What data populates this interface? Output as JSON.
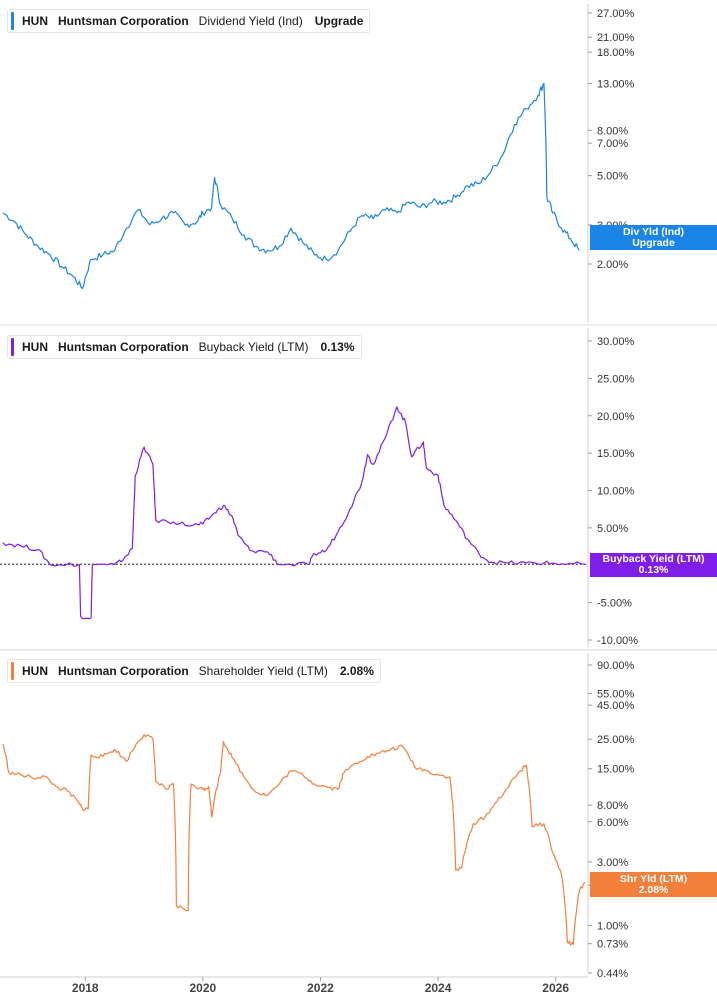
{
  "chart_data": [
    {
      "type": "line",
      "legend": {
        "ticker": "HUN",
        "company": "Huntsman Corporation",
        "metric": "Dividend Yield (Ind)",
        "value": "Upgrade"
      },
      "flag": {
        "line1": "Div Yld (Ind)",
        "line2": "Upgrade"
      },
      "color": "#1a85e6",
      "scale": "log",
      "ylim": [
        1.5,
        30
      ],
      "y_ticks": [
        "27.00%",
        "21.00%",
        "18.00%",
        "13.00%",
        "8.00%",
        "7.00%",
        "5.00%",
        "3.00%",
        "2.00%"
      ],
      "y_tick_values": [
        27,
        21,
        18,
        13,
        8,
        7,
        5,
        3,
        2
      ],
      "series": [
        {
          "points": [
            [
              2016.6,
              3.4
            ],
            [
              2016.8,
              3.1
            ],
            [
              2017.0,
              2.7
            ],
            [
              2017.2,
              2.4
            ],
            [
              2017.4,
              2.2
            ],
            [
              2017.6,
              1.95
            ],
            [
              2017.8,
              1.75
            ],
            [
              2017.95,
              1.55
            ],
            [
              2018.1,
              2.1
            ],
            [
              2018.3,
              2.2
            ],
            [
              2018.5,
              2.3
            ],
            [
              2018.7,
              2.9
            ],
            [
              2018.9,
              3.5
            ],
            [
              2019.1,
              3.0
            ],
            [
              2019.3,
              3.2
            ],
            [
              2019.5,
              3.4
            ],
            [
              2019.7,
              3.0
            ],
            [
              2019.9,
              3.1
            ],
            [
              2020.0,
              3.4
            ],
            [
              2020.15,
              3.6
            ],
            [
              2020.2,
              4.9
            ],
            [
              2020.3,
              3.7
            ],
            [
              2020.5,
              3.2
            ],
            [
              2020.7,
              2.7
            ],
            [
              2020.9,
              2.4
            ],
            [
              2021.1,
              2.3
            ],
            [
              2021.3,
              2.4
            ],
            [
              2021.5,
              2.9
            ],
            [
              2021.7,
              2.5
            ],
            [
              2021.9,
              2.2
            ],
            [
              2022.1,
              2.1
            ],
            [
              2022.3,
              2.3
            ],
            [
              2022.5,
              2.8
            ],
            [
              2022.7,
              3.3
            ],
            [
              2022.9,
              3.2
            ],
            [
              2023.1,
              3.5
            ],
            [
              2023.3,
              3.4
            ],
            [
              2023.5,
              3.8
            ],
            [
              2023.7,
              3.6
            ],
            [
              2023.9,
              3.8
            ],
            [
              2024.1,
              3.8
            ],
            [
              2024.3,
              4.0
            ],
            [
              2024.5,
              4.5
            ],
            [
              2024.7,
              4.6
            ],
            [
              2024.9,
              5.2
            ],
            [
              2025.1,
              6.2
            ],
            [
              2025.3,
              8.5
            ],
            [
              2025.5,
              10.0
            ],
            [
              2025.7,
              11.5
            ],
            [
              2025.8,
              13.0
            ],
            [
              2025.85,
              4.0
            ],
            [
              2025.95,
              3.4
            ],
            [
              2026.1,
              2.9
            ],
            [
              2026.25,
              2.6
            ],
            [
              2026.4,
              2.3
            ]
          ]
        }
      ]
    },
    {
      "type": "line",
      "legend": {
        "ticker": "HUN",
        "company": "Huntsman Corporation",
        "metric": "Buyback Yield (LTM)",
        "value": "0.13%"
      },
      "flag": {
        "line1": "Buyback Yield (LTM)",
        "line2": "0.13%"
      },
      "color": "#7f1ee8",
      "scale": "linear",
      "ylim": [
        -10,
        30
      ],
      "y_ticks": [
        "30.00%",
        "25.00%",
        "20.00%",
        "15.00%",
        "10.00%",
        "5.00%",
        "-5.00%",
        "-10.00%"
      ],
      "y_tick_values": [
        30,
        25,
        20,
        15,
        10,
        5,
        -5,
        -10
      ],
      "series": [
        {
          "points": [
            [
              2016.6,
              3.0
            ],
            [
              2016.9,
              2.6
            ],
            [
              2017.2,
              2.1
            ],
            [
              2017.4,
              0.1
            ],
            [
              2017.9,
              0.1
            ],
            [
              2017.92,
              -6.8
            ],
            [
              2018.1,
              -7.0
            ],
            [
              2018.12,
              0.1
            ],
            [
              2018.5,
              0.1
            ],
            [
              2018.6,
              0.5
            ],
            [
              2018.8,
              2.2
            ],
            [
              2018.85,
              12.0
            ],
            [
              2019.0,
              15.8
            ],
            [
              2019.15,
              13.5
            ],
            [
              2019.2,
              6.0
            ],
            [
              2019.5,
              5.8
            ],
            [
              2019.8,
              5.3
            ],
            [
              2020.0,
              5.5
            ],
            [
              2020.2,
              7.0
            ],
            [
              2020.35,
              8.0
            ],
            [
              2020.5,
              6.5
            ],
            [
              2020.6,
              4.0
            ],
            [
              2020.8,
              2.0
            ],
            [
              2021.1,
              1.8
            ],
            [
              2021.3,
              0.1
            ],
            [
              2021.8,
              0.1
            ],
            [
              2021.9,
              1.5
            ],
            [
              2022.1,
              2.0
            ],
            [
              2022.3,
              4.5
            ],
            [
              2022.5,
              7.5
            ],
            [
              2022.7,
              11.0
            ],
            [
              2022.8,
              14.8
            ],
            [
              2022.9,
              13.5
            ],
            [
              2023.1,
              17.0
            ],
            [
              2023.3,
              21.2
            ],
            [
              2023.45,
              19.0
            ],
            [
              2023.55,
              14.5
            ],
            [
              2023.75,
              16.5
            ],
            [
              2023.8,
              13.0
            ],
            [
              2024.0,
              12.0
            ],
            [
              2024.1,
              8.0
            ],
            [
              2024.3,
              6.0
            ],
            [
              2024.5,
              3.5
            ],
            [
              2024.7,
              1.5
            ],
            [
              2024.9,
              0.4
            ],
            [
              2025.2,
              0.3
            ],
            [
              2025.5,
              0.3
            ],
            [
              2025.8,
              0.3
            ],
            [
              2026.1,
              0.2
            ],
            [
              2026.5,
              0.13
            ]
          ]
        }
      ]
    },
    {
      "type": "line",
      "legend": {
        "ticker": "HUN",
        "company": "Huntsman Corporation",
        "metric": "Shareholder Yield (LTM)",
        "value": "2.08%"
      },
      "flag": {
        "line1": "Shr Yld (LTM)",
        "line2": "2.08%"
      },
      "color": "#f2803a",
      "scale": "log",
      "ylim": [
        0.44,
        120
      ],
      "y_ticks": [
        "90.00%",
        "55.00%",
        "45.00%",
        "25.00%",
        "15.00%",
        "8.00%",
        "6.00%",
        "3.00%",
        "2.00%",
        "1.00%",
        "0.73%",
        "0.44%"
      ],
      "y_tick_values": [
        90,
        55,
        45,
        25,
        15,
        8,
        6,
        3,
        2,
        1,
        0.73,
        0.44
      ],
      "series": [
        {
          "points": [
            [
              2016.6,
              23.0
            ],
            [
              2016.7,
              14.0
            ],
            [
              2016.9,
              13.5
            ],
            [
              2017.1,
              12.8
            ],
            [
              2017.3,
              13.2
            ],
            [
              2017.5,
              11.0
            ],
            [
              2017.7,
              10.2
            ],
            [
              2017.9,
              8.2
            ],
            [
              2017.95,
              7.5
            ],
            [
              2018.05,
              7.5
            ],
            [
              2018.1,
              19.0
            ],
            [
              2018.3,
              18.5
            ],
            [
              2018.5,
              21.0
            ],
            [
              2018.7,
              17.0
            ],
            [
              2018.9,
              24.0
            ],
            [
              2019.0,
              27.0
            ],
            [
              2019.15,
              25.0
            ],
            [
              2019.2,
              12.0
            ],
            [
              2019.4,
              10.5
            ],
            [
              2019.5,
              11.5
            ],
            [
              2019.55,
              1.4
            ],
            [
              2019.75,
              1.3
            ],
            [
              2019.8,
              11.5
            ],
            [
              2020.0,
              10.5
            ],
            [
              2020.1,
              11.0
            ],
            [
              2020.15,
              6.5
            ],
            [
              2020.3,
              14.0
            ],
            [
              2020.35,
              24.0
            ],
            [
              2020.5,
              18.0
            ],
            [
              2020.7,
              13.0
            ],
            [
              2020.9,
              10.0
            ],
            [
              2021.1,
              9.5
            ],
            [
              2021.3,
              11.5
            ],
            [
              2021.5,
              14.5
            ],
            [
              2021.7,
              13.5
            ],
            [
              2021.9,
              11.5
            ],
            [
              2022.1,
              11.0
            ],
            [
              2022.3,
              10.5
            ],
            [
              2022.4,
              14.0
            ],
            [
              2022.6,
              16.5
            ],
            [
              2022.8,
              18.5
            ],
            [
              2023.0,
              19.5
            ],
            [
              2023.2,
              21.0
            ],
            [
              2023.4,
              22.0
            ],
            [
              2023.6,
              15.5
            ],
            [
              2023.8,
              14.5
            ],
            [
              2024.0,
              13.5
            ],
            [
              2024.2,
              13.0
            ],
            [
              2024.3,
              2.6
            ],
            [
              2024.4,
              2.7
            ],
            [
              2024.6,
              5.8
            ],
            [
              2024.8,
              6.5
            ],
            [
              2025.0,
              8.5
            ],
            [
              2025.2,
              11.0
            ],
            [
              2025.4,
              14.5
            ],
            [
              2025.5,
              16.0
            ],
            [
              2025.6,
              5.5
            ],
            [
              2025.8,
              5.8
            ],
            [
              2025.95,
              3.5
            ],
            [
              2026.1,
              2.4
            ],
            [
              2026.2,
              0.75
            ],
            [
              2026.3,
              0.72
            ],
            [
              2026.4,
              1.8
            ],
            [
              2026.5,
              2.08
            ]
          ]
        }
      ]
    }
  ],
  "x_axis": {
    "range": [
      2016.55,
      2026.55
    ],
    "ticks": [
      "2018",
      "2020",
      "2022",
      "2024",
      "2026"
    ],
    "tick_values": [
      2018,
      2020,
      2022,
      2024,
      2026
    ]
  }
}
